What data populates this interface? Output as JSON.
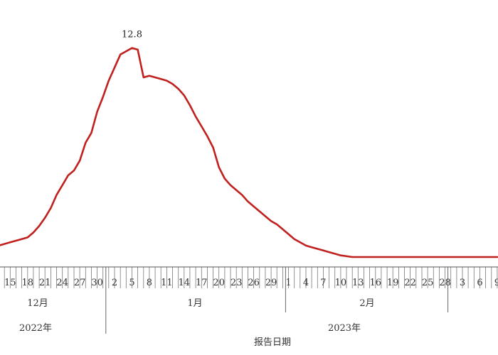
{
  "chart_data": {
    "type": "line",
    "xlabel": "报告日期",
    "annotation": {
      "x": "2023-01-05",
      "text": "12.8"
    },
    "x_range": [
      "2022-12-13",
      "2023-03-09"
    ],
    "tick_labels": [
      "15",
      "18",
      "21",
      "24",
      "27",
      "30",
      "2",
      "5",
      "8",
      "11",
      "14",
      "17",
      "20",
      "23",
      "26",
      "29",
      "1",
      "4",
      "7",
      "10",
      "13",
      "16",
      "19",
      "22",
      "25",
      "28",
      "3",
      "6",
      "9"
    ],
    "months": [
      "12月",
      "1月",
      "2月"
    ],
    "years": [
      "2022年",
      "2023年"
    ],
    "line_color": "#c0201e",
    "series": [
      {
        "x": [
          "2022-12-13",
          "2022-12-14",
          "2022-12-15",
          "2022-12-16",
          "2022-12-17",
          "2022-12-18",
          "2022-12-19",
          "2022-12-20",
          "2022-12-21",
          "2022-12-22",
          "2022-12-23",
          "2022-12-24",
          "2022-12-25",
          "2022-12-26",
          "2022-12-27",
          "2022-12-28",
          "2022-12-29",
          "2022-12-30",
          "2022-12-31",
          "2023-01-01",
          "2023-01-02",
          "2023-01-03",
          "2023-01-04",
          "2023-01-05",
          "2023-01-06",
          "2023-01-07",
          "2023-01-08",
          "2023-01-09",
          "2023-01-10",
          "2023-01-11",
          "2023-01-12",
          "2023-01-13",
          "2023-01-14",
          "2023-01-15",
          "2023-01-16",
          "2023-01-17",
          "2023-01-18",
          "2023-01-19",
          "2023-01-20",
          "2023-01-21",
          "2023-01-22",
          "2023-01-23",
          "2023-01-24",
          "2023-01-25",
          "2023-01-26",
          "2023-01-27",
          "2023-01-28",
          "2023-01-29",
          "2023-01-30",
          "2023-01-31",
          "2023-02-01",
          "2023-02-02",
          "2023-02-03",
          "2023-02-04",
          "2023-02-05",
          "2023-02-06",
          "2023-02-07",
          "2023-02-08",
          "2023-02-09",
          "2023-02-10",
          "2023-02-12",
          "2023-02-16",
          "2023-02-20",
          "2023-02-24",
          "2023-02-28",
          "2023-03-03",
          "2023-03-06",
          "2023-03-09"
        ],
        "values": [
          0.7,
          0.8,
          0.9,
          1.0,
          1.1,
          1.2,
          1.5,
          1.9,
          2.4,
          3.0,
          3.8,
          4.4,
          5.0,
          5.3,
          5.9,
          7.0,
          7.6,
          8.9,
          9.8,
          10.8,
          11.6,
          12.4,
          12.6,
          12.8,
          12.7,
          11.0,
          11.1,
          11.0,
          10.9,
          10.8,
          10.6,
          10.3,
          9.9,
          9.3,
          8.6,
          8.0,
          7.4,
          6.7,
          5.5,
          4.8,
          4.4,
          4.1,
          3.8,
          3.4,
          3.1,
          2.8,
          2.5,
          2.2,
          2.0,
          1.7,
          1.4,
          1.1,
          0.9,
          0.7,
          0.6,
          0.5,
          0.4,
          0.3,
          0.2,
          0.1,
          0.0,
          0.0,
          0.0,
          0.0,
          0.0,
          0.0,
          0.0,
          0.0
        ]
      }
    ]
  }
}
